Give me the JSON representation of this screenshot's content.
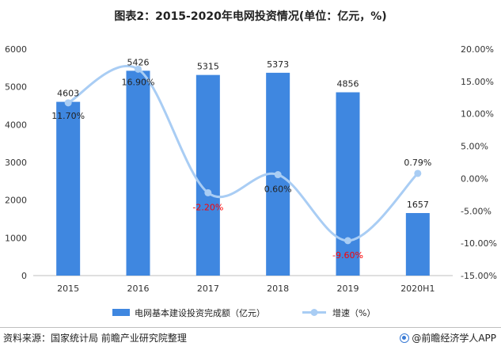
{
  "title": "图表2：2015-2020年电网投资情况(单位：亿元，%)",
  "source": "资料来源：国家统计局 前瞻产业研究院整理",
  "brand": "@前瞻经济学人APP",
  "colors": {
    "bar": "#3f87e0",
    "line": "#a9cdf4",
    "negative_label": "#ff0000",
    "label": "#222222"
  },
  "chart_data": {
    "type": "bar+line",
    "categories": [
      "2015",
      "2016",
      "2017",
      "2018",
      "2019",
      "2020H1"
    ],
    "series": [
      {
        "name": "电网基本建设投资完成额（亿元）",
        "type": "bar",
        "axis": "left",
        "values": [
          4603,
          5426,
          5315,
          5373,
          4856,
          1657
        ],
        "labels": [
          "4603",
          "5426",
          "5315",
          "5373",
          "4856",
          "1657"
        ]
      },
      {
        "name": "增速（%）",
        "type": "line",
        "axis": "right",
        "values": [
          11.7,
          16.9,
          -2.2,
          0.6,
          -9.6,
          0.79
        ],
        "labels": [
          "11.70%",
          "16.90%",
          "-2.20%",
          "0.60%",
          "-9.60%",
          "0.79%"
        ]
      }
    ],
    "y_left": {
      "min": 0,
      "max": 6000,
      "ticks": [
        "0",
        "1000",
        "2000",
        "3000",
        "4000",
        "5000",
        "6000"
      ]
    },
    "y_right": {
      "min": -15,
      "max": 20,
      "ticks": [
        "-15.00%",
        "-10.00%",
        "-5.00%",
        "0.00%",
        "5.00%",
        "10.00%",
        "15.00%",
        "20.00%"
      ]
    },
    "legend_position": "bottom",
    "grid": false
  }
}
